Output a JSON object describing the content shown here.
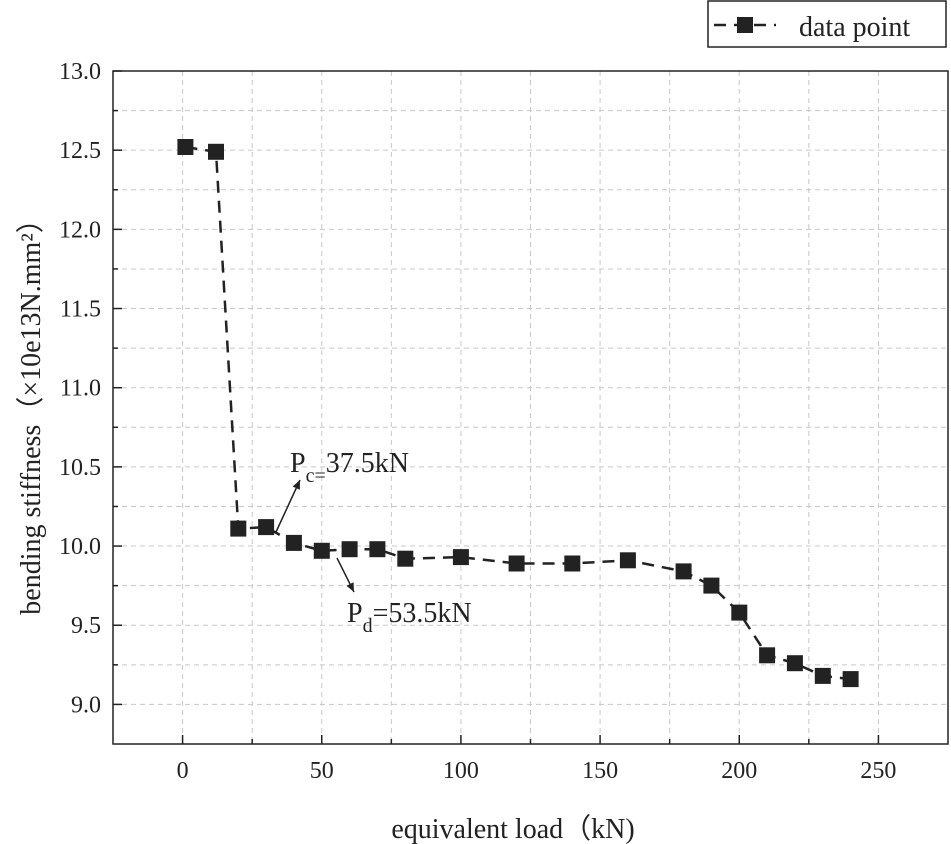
{
  "chart_data": {
    "type": "line",
    "title": "",
    "xlabel": "equivalent load（kN)",
    "ylabel": "bending stiffness（×10e13N.mm²）",
    "xlim": [
      -25,
      275
    ],
    "ylim": [
      8.75,
      13.0
    ],
    "xticks": [
      "0",
      "50",
      "100",
      "150",
      "200",
      "250"
    ],
    "yticks": [
      "9.0",
      "9.5",
      "10.0",
      "10.5",
      "11.0",
      "11.5",
      "12.0",
      "12.5",
      "13.0"
    ],
    "grid": true,
    "legend": {
      "position": "top-right",
      "entries": [
        "data point"
      ]
    },
    "series": [
      {
        "name": "data point",
        "marker": "square",
        "line": "dashed",
        "x": [
          1,
          12,
          20,
          30,
          40,
          50,
          60,
          70,
          80,
          100,
          120,
          140,
          160,
          180,
          190,
          200,
          210,
          220,
          230,
          240
        ],
        "y": [
          12.52,
          12.49,
          10.11,
          10.12,
          10.02,
          9.97,
          9.98,
          9.98,
          9.92,
          9.93,
          9.89,
          9.89,
          9.91,
          9.84,
          9.75,
          9.58,
          9.31,
          9.26,
          9.18,
          9.16
        ]
      }
    ],
    "annotations": [
      {
        "label": "P",
        "sub": "c=",
        "value": "37.5kN"
      },
      {
        "label": "P",
        "sub": "d",
        "value": "=53.5kN"
      }
    ]
  }
}
